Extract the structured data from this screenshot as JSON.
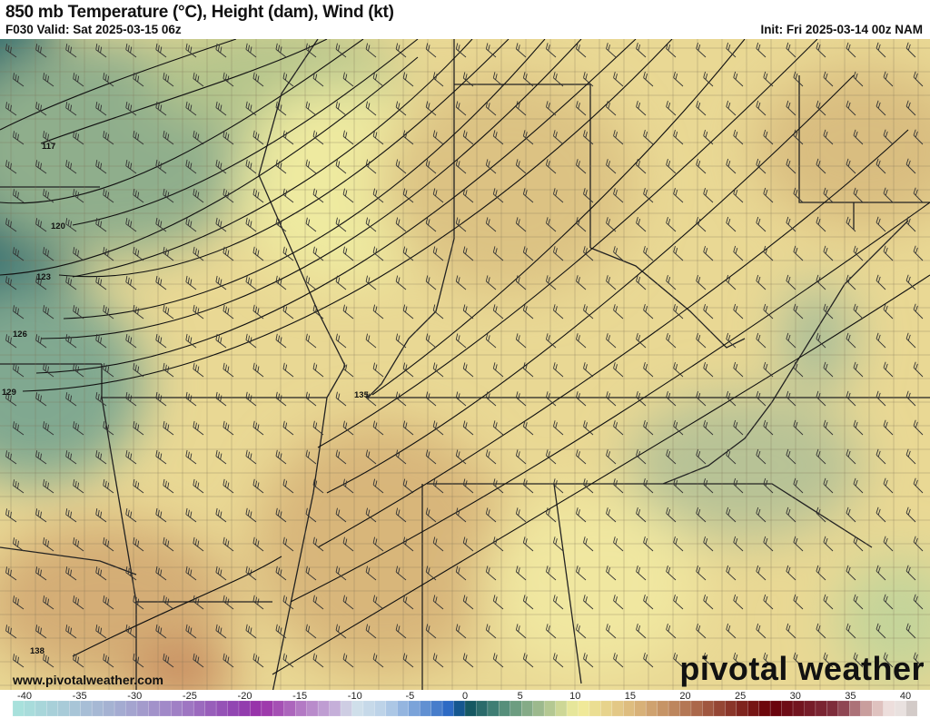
{
  "header": {
    "title": "850 mb Temperature (°C), Height (dam), Wind (kt)",
    "valid": "F030 Valid: Sat 2025-03-15 06z",
    "init": "Init: Fri 2025-03-14 00z NAM"
  },
  "map": {
    "height_contour_labels": [
      "117",
      "120",
      "123",
      "126",
      "129",
      "135",
      "138"
    ],
    "wind_barb_color": "#333333",
    "contour_color": "#111111"
  },
  "colorbar": {
    "ticks": [
      "-40",
      "-35",
      "-30",
      "-25",
      "-20",
      "-15",
      "-10",
      "-5",
      "0",
      "5",
      "10",
      "15",
      "20",
      "25",
      "30",
      "35",
      "40"
    ],
    "range": [
      -40,
      40
    ],
    "stops": [
      [
        -40,
        "#a8e4dc"
      ],
      [
        -35,
        "#a8c8d8"
      ],
      [
        -30,
        "#a4a8d0"
      ],
      [
        -25,
        "#a07cc4"
      ],
      [
        -20,
        "#9040b0"
      ],
      [
        -18,
        "#9a30a8"
      ],
      [
        -15,
        "#b070c0"
      ],
      [
        -11,
        "#c8b8dc"
      ],
      [
        -10,
        "#d4e2ea"
      ],
      [
        -7,
        "#b8d0e8"
      ],
      [
        -5,
        "#88acdc"
      ],
      [
        -1,
        "#2060c0"
      ],
      [
        0,
        "#0a4e5e"
      ],
      [
        3,
        "#4a8878"
      ],
      [
        7,
        "#a8c090"
      ],
      [
        10,
        "#f2ee9c"
      ],
      [
        15,
        "#dcb87c"
      ],
      [
        20,
        "#b07050"
      ],
      [
        25,
        "#7a1c18"
      ],
      [
        27,
        "#680008"
      ],
      [
        33,
        "#803040"
      ],
      [
        36,
        "#d8b4b0"
      ],
      [
        38,
        "#f4ecea"
      ],
      [
        40,
        "#c8c0bc"
      ]
    ]
  },
  "watermark": "www.pivotalweather.com",
  "logo": {
    "text": "pivotal weather"
  }
}
